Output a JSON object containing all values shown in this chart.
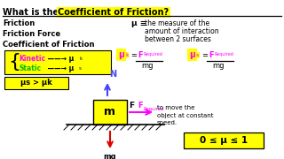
{
  "bg_color": "#2a2a2a",
  "content_bg": "#ffffff",
  "title_plain": "What is the ",
  "title_highlight": "Coefficient of Friction",
  "title_end": "?",
  "left_terms": [
    "Friction",
    "Friction Force",
    "Coefficient of Friction"
  ],
  "yellow": "#ffff00",
  "magenta": "#ff00ff",
  "green": "#00bb00",
  "blue": "#4444ff",
  "red": "#dd0000",
  "black": "#000000",
  "white": "#ffffff",
  "darkgrey": "#2a2a2a",
  "fig_w": 3.2,
  "fig_h": 1.8,
  "dpi": 100
}
